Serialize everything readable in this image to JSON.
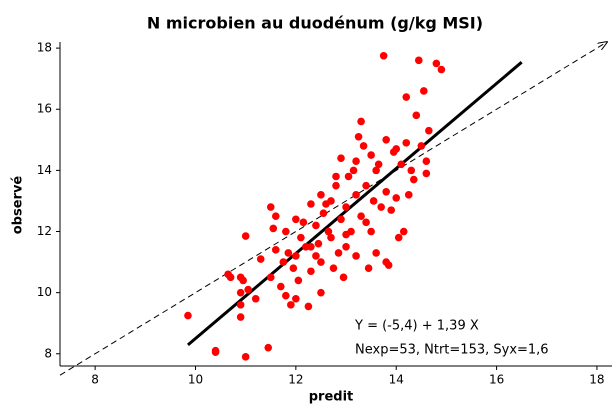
{
  "chart_data": {
    "type": "scatter",
    "title": "N microbien au duodénum (g/kg MSI)",
    "x_label": "predit",
    "y_label": "observé",
    "xlim": [
      7.3,
      18.3
    ],
    "ylim": [
      7.6,
      18.2
    ],
    "xticks": [
      8,
      10,
      12,
      14,
      16,
      18
    ],
    "yticks": [
      8,
      10,
      12,
      14,
      16,
      18
    ],
    "grid": false,
    "series": [
      {
        "color": "#ff0000",
        "x": [
          9.85,
          10.4,
          10.4,
          11.0,
          11.45,
          10.9,
          10.9,
          10.95,
          10.9,
          11.05,
          10.65,
          10.7,
          11.2,
          11.0,
          11.5,
          11.6,
          11.55,
          11.5,
          11.6,
          11.75,
          11.7,
          11.8,
          11.9,
          11.95,
          12.0,
          12.1,
          12.05,
          12.0,
          12.25,
          12.0,
          11.8,
          12.2,
          12.3,
          12.3,
          12.4,
          12.4,
          12.5,
          12.5,
          12.5,
          12.55,
          12.65,
          12.7,
          12.7,
          12.75,
          12.8,
          12.85,
          12.9,
          12.9,
          12.95,
          13.0,
          13.0,
          13.05,
          13.1,
          13.15,
          13.2,
          13.2,
          13.25,
          13.3,
          13.3,
          13.35,
          13.4,
          13.4,
          13.45,
          13.5,
          13.5,
          13.55,
          13.6,
          13.65,
          13.7,
          13.75,
          13.8,
          13.8,
          13.85,
          13.9,
          13.95,
          14.0,
          14.05,
          14.1,
          14.15,
          14.2,
          14.25,
          14.3,
          14.35,
          14.4,
          14.45,
          14.5,
          14.55,
          14.6,
          14.65,
          14.8,
          14.9,
          14.6,
          14.2,
          13.6,
          12.15,
          12.6,
          11.3,
          10.9,
          13.0,
          12.3,
          13.8,
          14.0,
          12.8,
          13.2,
          12.45,
          11.85
        ],
        "values": [
          9.25,
          8.05,
          8.1,
          7.9,
          8.2,
          9.2,
          9.6,
          10.4,
          10.5,
          10.1,
          10.6,
          10.5,
          9.8,
          11.85,
          12.8,
          12.5,
          12.1,
          10.5,
          11.4,
          11.0,
          10.2,
          9.9,
          9.6,
          10.8,
          12.4,
          11.8,
          10.4,
          9.8,
          9.55,
          11.2,
          12.0,
          11.5,
          10.7,
          12.9,
          11.2,
          12.2,
          13.2,
          11.0,
          10.0,
          12.6,
          12.0,
          11.8,
          13.0,
          10.8,
          13.5,
          11.3,
          12.4,
          14.4,
          10.5,
          12.8,
          11.5,
          13.8,
          12.0,
          14.0,
          11.2,
          13.2,
          15.1,
          15.6,
          12.5,
          14.8,
          12.3,
          13.5,
          10.8,
          14.5,
          12.0,
          13.0,
          11.3,
          14.2,
          12.8,
          17.75,
          13.3,
          11.0,
          10.9,
          12.7,
          14.6,
          13.1,
          11.8,
          14.2,
          12.0,
          16.4,
          13.2,
          14.0,
          13.7,
          15.8,
          17.6,
          14.8,
          16.6,
          14.3,
          15.3,
          17.5,
          17.3,
          13.9,
          14.9,
          14.0,
          12.3,
          12.9,
          11.1,
          10.0,
          11.9,
          11.5,
          15.0,
          14.7,
          13.8,
          14.3,
          11.6,
          11.3
        ]
      }
    ],
    "lines": [
      {
        "x": [
          9.85,
          16.5
        ],
        "values": [
          8.29,
          17.54
        ],
        "color": "#000000",
        "dashed": false
      },
      {
        "x": [
          7.3,
          18.2
        ],
        "values": [
          7.3,
          18.2
        ],
        "color": "#000000",
        "dashed": true
      }
    ],
    "annotations": [
      "Y = (-5,4) + 1,39 X",
      "Nexp=53, Ntrt=153, Syx=1,6"
    ]
  }
}
